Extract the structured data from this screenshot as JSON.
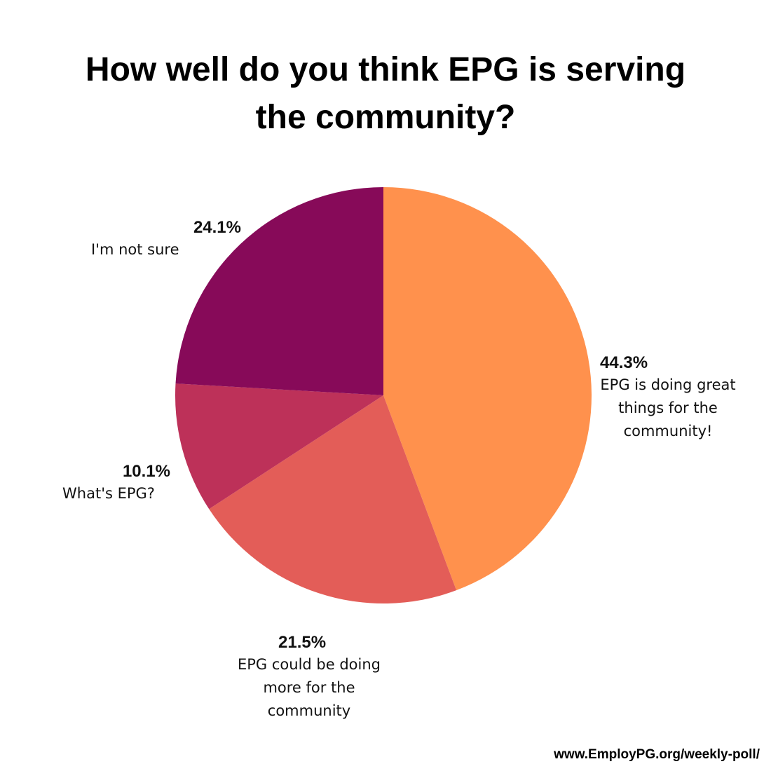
{
  "chart_data": {
    "type": "pie",
    "title_lines": [
      "How well do you think EPG is serving",
      "the community?"
    ],
    "slices": [
      {
        "label": "EPG is doing great things for the community!",
        "label_lines": [
          "EPG is doing great",
          "things for the",
          "community!"
        ],
        "value": 44.3,
        "value_label": "44.3%",
        "color": "#FF914D"
      },
      {
        "label": "EPG could be doing more for the community",
        "label_lines": [
          "EPG could be doing",
          "more for the",
          "community"
        ],
        "value": 21.5,
        "value_label": "21.5%",
        "color": "#E35D58"
      },
      {
        "label": "What's EPG?",
        "label_lines": [
          "What's EPG?"
        ],
        "value": 10.1,
        "value_label": "10.1%",
        "color": "#BD3159"
      },
      {
        "label": "I'm not sure",
        "label_lines": [
          "I'm not sure"
        ],
        "value": 24.1,
        "value_label": "24.1%",
        "color": "#870A59"
      }
    ],
    "start_angle_deg": 0,
    "direction": "clockwise",
    "legend": "none (labels beside slices)"
  },
  "footer": {
    "url": "www.EmployPG.org/weekly-poll/"
  }
}
